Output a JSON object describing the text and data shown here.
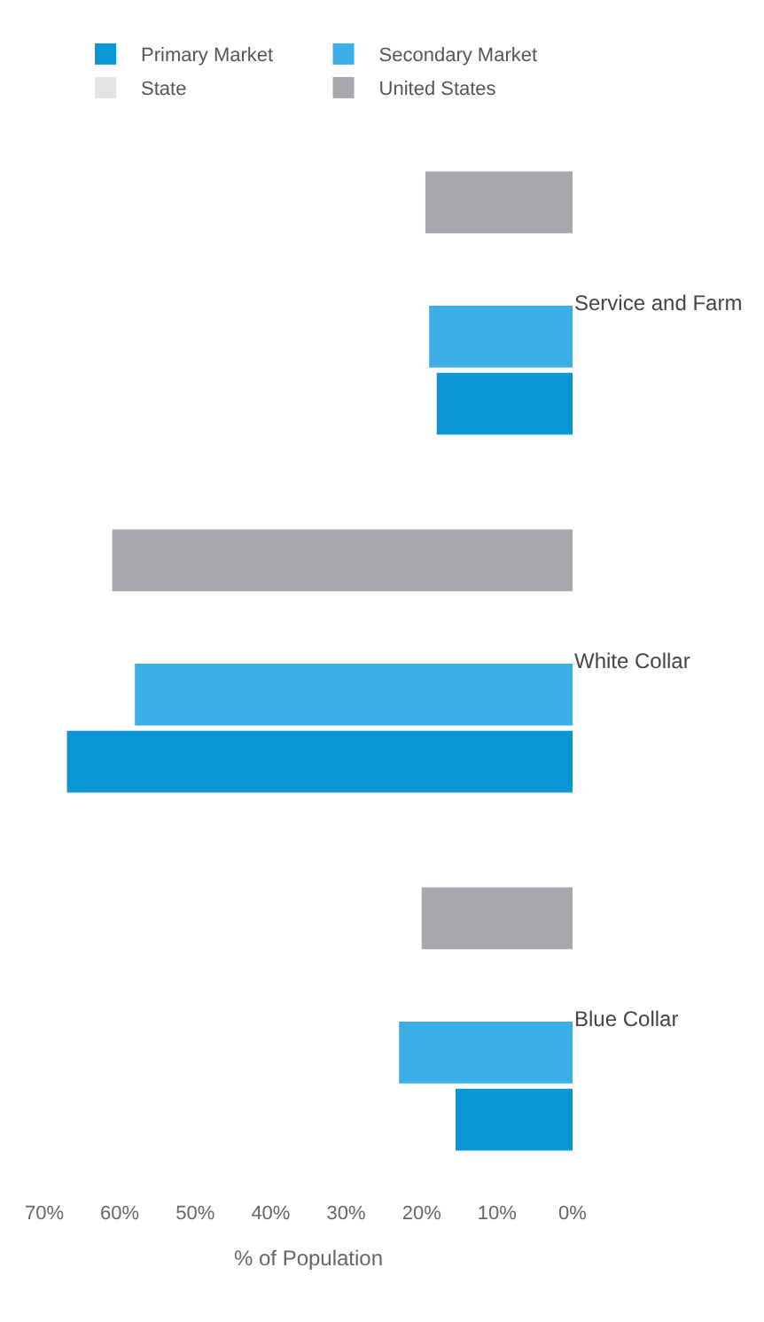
{
  "chart_data": {
    "type": "bar",
    "orientation": "horizontal",
    "xlabel": "% of Population",
    "categories": [
      "Service and Farm",
      "White Collar",
      "Blue Collar"
    ],
    "series": [
      {
        "name": "Primary Market",
        "color": "#0a96d4",
        "values": [
          18,
          67,
          15.5
        ]
      },
      {
        "name": "Secondary Market",
        "color": "#3aaee6",
        "values": [
          19,
          58,
          23
        ]
      },
      {
        "name": "State",
        "color": "#e3e3e3",
        "values": [
          null,
          null,
          null
        ]
      },
      {
        "name": "United States",
        "color": "#a6a8ab",
        "values": [
          19.5,
          61,
          20
        ]
      }
    ],
    "xlim": [
      70,
      0
    ],
    "xticks": [
      {
        "value": 70,
        "label": "70%"
      },
      {
        "value": 60,
        "label": "60%"
      },
      {
        "value": 50,
        "label": "50%"
      },
      {
        "value": 40,
        "label": "40%"
      },
      {
        "value": 30,
        "label": "30%"
      },
      {
        "value": 20,
        "label": "20%"
      },
      {
        "value": 10,
        "label": "10%"
      },
      {
        "value": 0,
        "label": "0%"
      }
    ],
    "legend": "top"
  }
}
